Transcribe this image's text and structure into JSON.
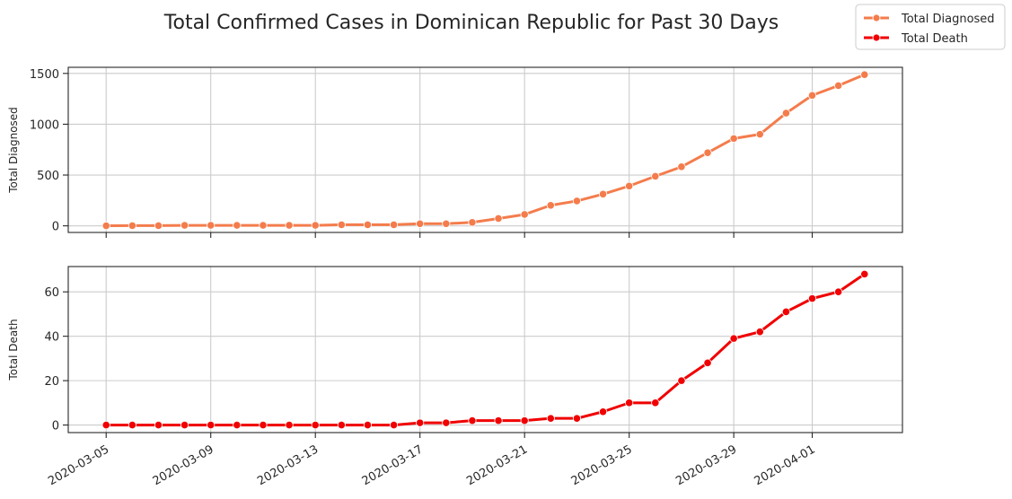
{
  "chart_data": {
    "type": "line",
    "title": "Total Confirmed Cases in Dominican Republic for Past 30 Days",
    "legend": {
      "placement": "top-right",
      "entries": [
        "Total Diagnosed",
        "Total Death"
      ]
    },
    "x": [
      "2020-03-05",
      "2020-03-06",
      "2020-03-07",
      "2020-03-08",
      "2020-03-09",
      "2020-03-10",
      "2020-03-11",
      "2020-03-12",
      "2020-03-13",
      "2020-03-14",
      "2020-03-15",
      "2020-03-16",
      "2020-03-17",
      "2020-03-18",
      "2020-03-19",
      "2020-03-20",
      "2020-03-21",
      "2020-03-22",
      "2020-03-23",
      "2020-03-24",
      "2020-03-25",
      "2020-03-26",
      "2020-03-27",
      "2020-03-28",
      "2020-03-29",
      "2020-03-30",
      "2020-03-31",
      "2020-04-01",
      "2020-04-02",
      "2020-04-03"
    ],
    "x_tick_labels": [
      "2020-03-05",
      "2020-03-09",
      "2020-03-13",
      "2020-03-17",
      "2020-03-21",
      "2020-03-25",
      "2020-03-29",
      "2020-04-01"
    ],
    "grid": true,
    "series": [
      {
        "name": "Total Diagnosed",
        "color": "#f47c4c",
        "ylabel": "Total Diagnosed",
        "ylim": [
          -65,
          1560
        ],
        "yticks": [
          0,
          500,
          1000,
          1500
        ],
        "values": [
          1,
          2,
          2,
          5,
          5,
          5,
          5,
          5,
          5,
          11,
          11,
          11,
          21,
          21,
          34,
          72,
          112,
          202,
          245,
          312,
          392,
          488,
          581,
          719,
          859,
          901,
          1109,
          1284,
          1380,
          1488
        ]
      },
      {
        "name": "Total Death",
        "color": "#f00000",
        "ylabel": "Total Death",
        "ylim": [
          -3.4,
          71.4
        ],
        "yticks": [
          0,
          20,
          40,
          60
        ],
        "values": [
          0,
          0,
          0,
          0,
          0,
          0,
          0,
          0,
          0,
          0,
          0,
          0,
          1,
          1,
          2,
          2,
          2,
          3,
          3,
          6,
          10,
          10,
          20,
          28,
          39,
          42,
          51,
          57,
          60,
          68
        ]
      }
    ]
  }
}
